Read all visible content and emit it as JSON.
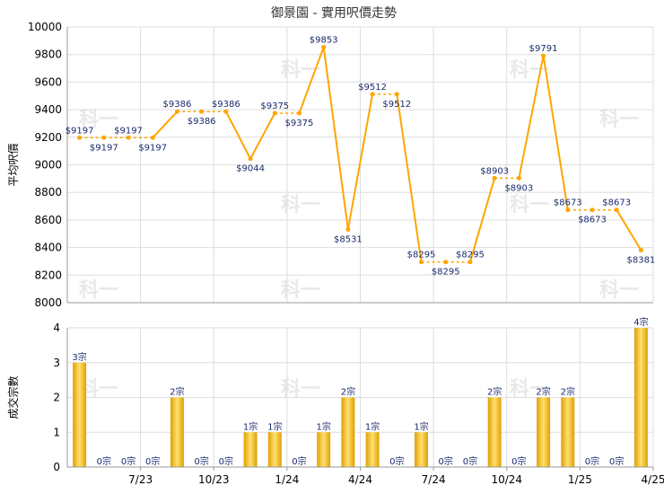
{
  "chart_data": [
    {
      "type": "line",
      "title": "御景園 - 實用呎價走勢",
      "ylabel": "平均呎價",
      "ylim": [
        8000,
        10000
      ],
      "yticks": [
        8000,
        8200,
        8400,
        8600,
        8800,
        9000,
        9200,
        9400,
        9600,
        9800,
        10000
      ],
      "grid": true,
      "color": "#ffa500",
      "series": [
        {
          "values": [
            9197,
            9197,
            9197,
            9197,
            9386,
            9386,
            9386,
            9044,
            9375,
            9375,
            9853,
            8531,
            9512,
            9512,
            8295,
            8295,
            8295,
            8903,
            8903,
            9791,
            8673,
            8673,
            8673,
            8381
          ],
          "labels": [
            "$9197",
            "$9197",
            "$9197",
            "$9197",
            "$9386",
            "$9386",
            "$9386",
            "$9044",
            "$9375",
            "$9375",
            "$9853",
            "$8531",
            "$9512",
            "$9512",
            "$8295",
            "$8295",
            "$8295",
            "$8903",
            "$8903",
            "$9791",
            "$8673",
            "$8673",
            "$8673",
            "$8381"
          ],
          "carried": [
            false,
            true,
            true,
            true,
            false,
            true,
            true,
            false,
            false,
            true,
            false,
            false,
            false,
            true,
            false,
            true,
            true,
            false,
            true,
            false,
            false,
            true,
            true,
            false
          ]
        }
      ]
    },
    {
      "type": "bar",
      "ylabel": "成交宗數",
      "ylim": [
        0,
        4
      ],
      "yticks": [
        0,
        1,
        2,
        3,
        4
      ],
      "grid": true,
      "values": [
        3,
        0,
        0,
        0,
        2,
        0,
        0,
        1,
        1,
        0,
        1,
        2,
        1,
        0,
        1,
        0,
        0,
        2,
        0,
        2,
        2,
        0,
        0,
        4
      ],
      "labels": [
        "3宗",
        "0宗",
        "0宗",
        "0宗",
        "2宗",
        "0宗",
        "0宗",
        "1宗",
        "1宗",
        "0宗",
        "1宗",
        "2宗",
        "1宗",
        "0宗",
        "1宗",
        "0宗",
        "0宗",
        "2宗",
        "0宗",
        "2宗",
        "2宗",
        "0宗",
        "0宗",
        "4宗"
      ],
      "xticks": [
        {
          "index": 2,
          "label": "7/23"
        },
        {
          "index": 5,
          "label": "10/23"
        },
        {
          "index": 8,
          "label": "1/24"
        },
        {
          "index": 11,
          "label": "4/24"
        },
        {
          "index": 14,
          "label": "7/24"
        },
        {
          "index": 17,
          "label": "10/24"
        },
        {
          "index": 20,
          "label": "1/25"
        },
        {
          "index": 23,
          "label": "4/25"
        }
      ]
    }
  ],
  "watermark": "科一",
  "colors": {
    "line": "#ffa500",
    "bar_light": "#ffe070",
    "bar_dark": "#e0a000",
    "grid": "#dddddd",
    "label": "#1a2a6c"
  }
}
